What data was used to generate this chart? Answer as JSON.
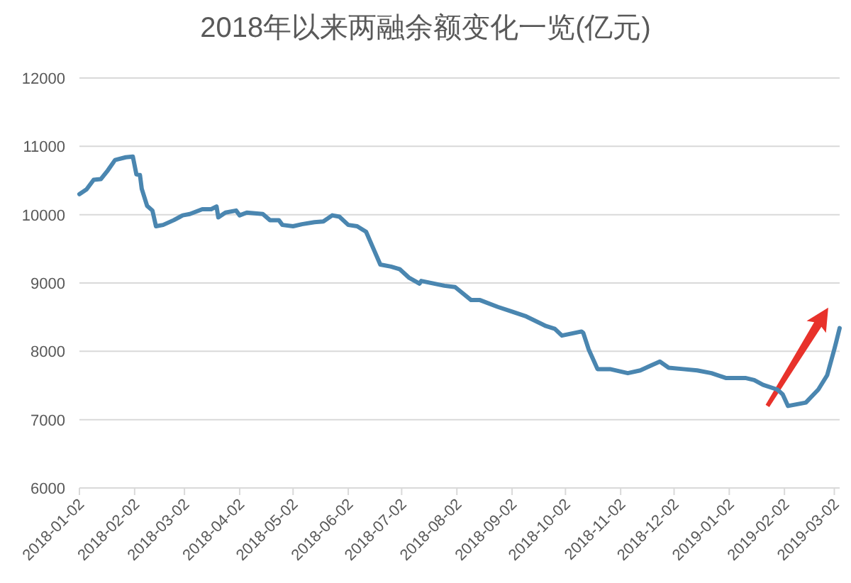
{
  "chart_data": {
    "type": "line",
    "title": "2018年以来两融余额变化一览(亿元)",
    "x": [
      "2018-01-02",
      "2018-01-06",
      "2018-01-10",
      "2018-01-14",
      "2018-01-18",
      "2018-01-22",
      "2018-01-28",
      "2018-02-01",
      "2018-02-03",
      "2018-02-05",
      "2018-02-06",
      "2018-02-09",
      "2018-02-12",
      "2018-02-14",
      "2018-02-18",
      "2018-02-24",
      "2018-03-01",
      "2018-03-05",
      "2018-03-12",
      "2018-03-17",
      "2018-03-20",
      "2018-03-21",
      "2018-03-25",
      "2018-03-31",
      "2018-04-02",
      "2018-04-06",
      "2018-04-15",
      "2018-04-19",
      "2018-04-24",
      "2018-04-26",
      "2018-05-02",
      "2018-05-07",
      "2018-05-14",
      "2018-05-19",
      "2018-05-24",
      "2018-05-28",
      "2018-06-02",
      "2018-06-07",
      "2018-06-12",
      "2018-06-16",
      "2018-06-20",
      "2018-06-26",
      "2018-07-01",
      "2018-07-06",
      "2018-07-12",
      "2018-07-13",
      "2018-07-26",
      "2018-08-01",
      "2018-08-10",
      "2018-08-15",
      "2018-08-25",
      "2018-09-02",
      "2018-09-10",
      "2018-09-21",
      "2018-09-26",
      "2018-09-30",
      "2018-10-11",
      "2018-10-12",
      "2018-10-15",
      "2018-10-20",
      "2018-10-27",
      "2018-11-06",
      "2018-11-13",
      "2018-11-18",
      "2018-11-24",
      "2018-11-29",
      "2018-12-07",
      "2018-12-15",
      "2018-12-23",
      "2018-12-31",
      "2019-01-05",
      "2019-01-11",
      "2019-01-16",
      "2019-01-21",
      "2019-01-29",
      "2019-02-01",
      "2019-02-04",
      "2019-02-14",
      "2019-02-21",
      "2019-02-26",
      "2019-03-02",
      "2019-03-03",
      "2019-03-05"
    ],
    "series": [
      {
        "color": "#4a86b0",
        "values": [
          10300,
          10370,
          10510,
          10520,
          10650,
          10800,
          10840,
          10850,
          10590,
          10580,
          10380,
          10130,
          10060,
          9830,
          9850,
          9920,
          9990,
          10010,
          10080,
          10080,
          10120,
          9960,
          10030,
          10060,
          9990,
          10030,
          10010,
          9920,
          9920,
          9850,
          9830,
          9860,
          9890,
          9900,
          9990,
          9970,
          9850,
          9830,
          9750,
          9510,
          9270,
          9240,
          9200,
          9080,
          8990,
          9030,
          8960,
          8940,
          8750,
          8750,
          8650,
          8580,
          8510,
          8370,
          8330,
          8230,
          8290,
          8270,
          8030,
          7740,
          7740,
          7680,
          7720,
          7780,
          7850,
          7760,
          7740,
          7720,
          7680,
          7610,
          7610,
          7610,
          7580,
          7510,
          7440,
          7370,
          7200,
          7250,
          7440,
          7650,
          8030,
          8130,
          8340
        ]
      }
    ],
    "xlim": [
      "2018-01-02",
      "2019-03-05"
    ],
    "xticks": [
      {
        "value": "2018-01-02",
        "label": "2018-01-02"
      },
      {
        "value": "2018-02-02",
        "label": "2018-02-02"
      },
      {
        "value": "2018-03-02",
        "label": "2018-03-02"
      },
      {
        "value": "2018-04-02",
        "label": "2018-04-02"
      },
      {
        "value": "2018-05-02",
        "label": "2018-05-02"
      },
      {
        "value": "2018-06-02",
        "label": "2018-06-02"
      },
      {
        "value": "2018-07-02",
        "label": "2018-07-02"
      },
      {
        "value": "2018-08-02",
        "label": "2018-08-02"
      },
      {
        "value": "2018-09-02",
        "label": "2018-09-02"
      },
      {
        "value": "2018-10-02",
        "label": "2018-10-02"
      },
      {
        "value": "2018-11-02",
        "label": "2018-11-02"
      },
      {
        "value": "2018-12-02",
        "label": "2018-12-02"
      },
      {
        "value": "2019-01-02",
        "label": "2019-01-02"
      },
      {
        "value": "2019-02-02",
        "label": "2019-02-02"
      },
      {
        "value": "2019-03-02",
        "label": "2019-03-02"
      }
    ],
    "ylim": [
      6000,
      12000
    ],
    "yticks": [
      6000,
      7000,
      8000,
      9000,
      10000,
      11000,
      12000
    ],
    "grid": "y",
    "marker": "none",
    "line_style": "solid"
  }
}
